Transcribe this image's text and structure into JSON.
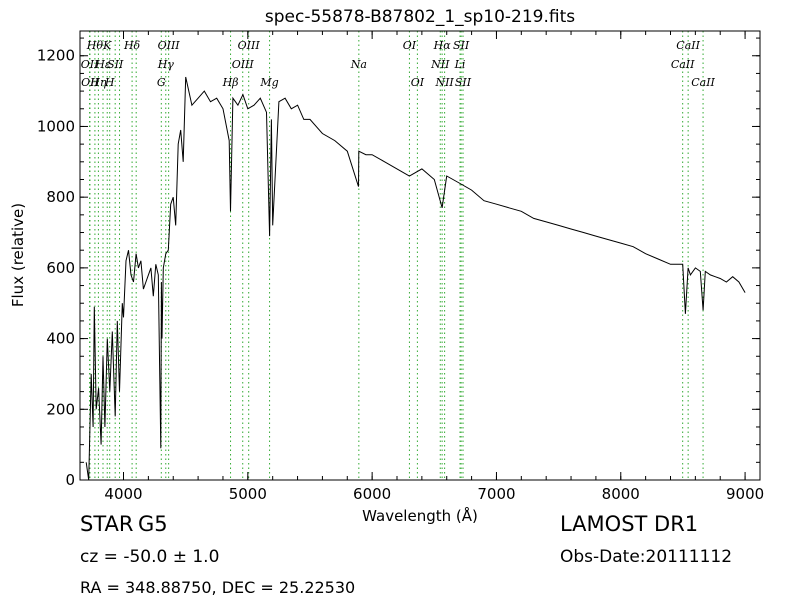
{
  "chart_data": {
    "type": "line",
    "title": "spec-55878-B87802_1_sp10-219.fits",
    "xlabel": "Wavelength (Å)",
    "ylabel": "Flux (relative)",
    "xlim": [
      3650,
      9120
    ],
    "ylim": [
      0,
      1270
    ],
    "xticks": [
      4000,
      5000,
      6000,
      7000,
      8000,
      9000
    ],
    "xtick_labels": [
      "4000",
      "5000",
      "6000",
      "7000",
      "8000",
      "9000"
    ],
    "yticks": [
      0,
      200,
      400,
      600,
      800,
      1000,
      1200
    ],
    "ytick_labels": [
      "0",
      "200",
      "400",
      "600",
      "800",
      "1000",
      "1200"
    ],
    "grid": false,
    "line_color": "#000000",
    "marker_color": "#33aa33",
    "series": [
      {
        "x": [
          3700,
          3720,
          3740,
          3755,
          3765,
          3780,
          3800,
          3820,
          3835,
          3850,
          3870,
          3890,
          3910,
          3933,
          3950,
          3968,
          3990,
          4000,
          4020,
          4040,
          4060,
          4080,
          4101,
          4120,
          4140,
          4160,
          4180,
          4200,
          4220,
          4240,
          4260,
          4280,
          4300,
          4305,
          4310,
          4320,
          4340,
          4360,
          4380,
          4400,
          4420,
          4440,
          4460,
          4480,
          4500,
          4550,
          4600,
          4650,
          4700,
          4750,
          4800,
          4850,
          4861,
          4880,
          4920,
          4960,
          5000,
          5050,
          5100,
          5150,
          5175,
          5190,
          5200,
          5250,
          5300,
          5350,
          5400,
          5450,
          5500,
          5600,
          5700,
          5800,
          5890,
          5893,
          5950,
          6000,
          6100,
          6200,
          6300,
          6400,
          6500,
          6563,
          6600,
          6700,
          6800,
          6900,
          7000,
          7100,
          7200,
          7300,
          7400,
          7500,
          7600,
          7700,
          7800,
          7900,
          8000,
          8100,
          8200,
          8300,
          8400,
          8498,
          8520,
          8542,
          8560,
          8600,
          8640,
          8662,
          8680,
          8720,
          8760,
          8800,
          8850,
          8900,
          8950,
          9000
        ],
        "y": [
          50,
          0,
          300,
          150,
          490,
          200,
          260,
          100,
          350,
          150,
          400,
          250,
          420,
          180,
          450,
          250,
          500,
          460,
          620,
          650,
          580,
          560,
          640,
          600,
          620,
          540,
          560,
          580,
          600,
          520,
          610,
          580,
          90,
          560,
          400,
          600,
          640,
          650,
          780,
          800,
          720,
          950,
          990,
          900,
          1140,
          1060,
          1080,
          1100,
          1070,
          1080,
          1050,
          960,
          760,
          1080,
          1060,
          1090,
          1050,
          1060,
          1080,
          1040,
          690,
          1020,
          720,
          1070,
          1080,
          1050,
          1060,
          1020,
          1020,
          980,
          960,
          930,
          830,
          930,
          920,
          920,
          900,
          880,
          860,
          880,
          850,
          770,
          860,
          840,
          820,
          790,
          780,
          770,
          760,
          740,
          730,
          720,
          710,
          700,
          690,
          680,
          670,
          660,
          640,
          625,
          610,
          610,
          470,
          600,
          580,
          600,
          590,
          480,
          590,
          580,
          575,
          570,
          560,
          575,
          560,
          530
        ]
      }
    ],
    "lines": [
      {
        "wavelength": 3727,
        "labels": [
          "OII"
        ],
        "row": [
          1
        ]
      },
      {
        "wavelength": 3730,
        "labels": [
          "OII"
        ],
        "row": [
          2
        ]
      },
      {
        "wavelength": 3770,
        "labels": [
          "Hθ"
        ],
        "row": [
          0
        ]
      },
      {
        "wavelength": 3798,
        "labels": [
          "Hη"
        ],
        "row": [
          2
        ]
      },
      {
        "wavelength": 3835,
        "labels": [
          "Hε"
        ],
        "row": [
          1
        ]
      },
      {
        "wavelength": 3869,
        "labels": [
          "K"
        ],
        "row": [
          0
        ]
      },
      {
        "wavelength": 3889,
        "labels": [
          "H"
        ],
        "row": [
          2
        ]
      },
      {
        "wavelength": 3933,
        "labels": [
          "SII"
        ],
        "row": [
          1
        ]
      },
      {
        "wavelength": 3968,
        "labels": [],
        "row": []
      },
      {
        "wavelength": 4069,
        "labels": [
          "Hδ"
        ],
        "row": [
          0
        ]
      },
      {
        "wavelength": 4102,
        "labels": [],
        "row": []
      },
      {
        "wavelength": 4304,
        "labels": [
          "G"
        ],
        "row": [
          2
        ]
      },
      {
        "wavelength": 4340,
        "labels": [
          "Hγ"
        ],
        "row": [
          1
        ]
      },
      {
        "wavelength": 4363,
        "labels": [
          "OIII"
        ],
        "row": [
          0
        ]
      },
      {
        "wavelength": 4861,
        "labels": [
          "Hβ"
        ],
        "row": [
          2
        ]
      },
      {
        "wavelength": 4959,
        "labels": [
          "OIII"
        ],
        "row": [
          1
        ]
      },
      {
        "wavelength": 5007,
        "labels": [
          "OIII"
        ],
        "row": [
          0
        ]
      },
      {
        "wavelength": 5175,
        "labels": [
          "Mg"
        ],
        "row": [
          2
        ]
      },
      {
        "wavelength": 5893,
        "labels": [
          "Na"
        ],
        "row": [
          1
        ]
      },
      {
        "wavelength": 6300,
        "labels": [
          "OI"
        ],
        "row": [
          0
        ]
      },
      {
        "wavelength": 6364,
        "labels": [
          "OI"
        ],
        "row": [
          2
        ]
      },
      {
        "wavelength": 6548,
        "labels": [
          "NII"
        ],
        "row": [
          1
        ]
      },
      {
        "wavelength": 6563,
        "labels": [
          "Hα"
        ],
        "row": [
          0
        ]
      },
      {
        "wavelength": 6583,
        "labels": [
          "NII"
        ],
        "row": [
          2
        ]
      },
      {
        "wavelength": 6707,
        "labels": [
          "Li"
        ],
        "row": [
          1
        ]
      },
      {
        "wavelength": 6716,
        "labels": [
          "SII"
        ],
        "row": [
          0
        ]
      },
      {
        "wavelength": 6731,
        "labels": [
          "SII"
        ],
        "row": [
          2
        ]
      },
      {
        "wavelength": 8498,
        "labels": [
          "CaII"
        ],
        "row": [
          1
        ]
      },
      {
        "wavelength": 8542,
        "labels": [
          "CaII"
        ],
        "row": [
          0
        ]
      },
      {
        "wavelength": 8662,
        "labels": [
          "CaII"
        ],
        "row": [
          2
        ]
      }
    ]
  },
  "info": {
    "obj_type": "STAR",
    "obj_class": "G5",
    "survey": "LAMOST DR1",
    "cz": "cz = -50.0 ± 1.0",
    "obs_date": "Obs-Date:20111112",
    "radec": "RA = 348.88750, DEC = 25.22530"
  }
}
